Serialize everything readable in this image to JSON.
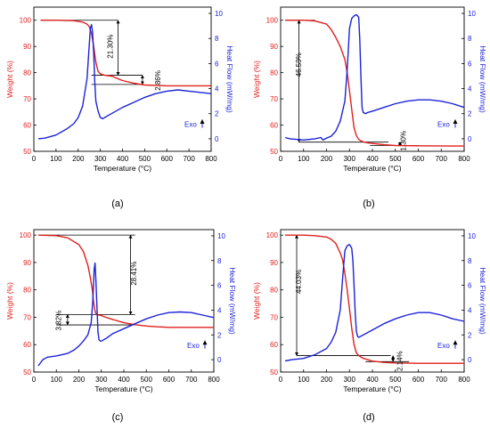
{
  "chart_data": [
    {
      "panel_label": "(a)",
      "type": "line",
      "xlabel": "Temperature (°C)",
      "ylabel_left": "Weight (%)",
      "ylabel_right": "Heat Flow (mW/mg)",
      "xlim": [
        0,
        800
      ],
      "ylim_left": [
        50,
        105
      ],
      "ylim_right": [
        -1,
        10.5
      ],
      "xticks": [
        "0",
        "100",
        "200",
        "300",
        "400",
        "500",
        "600",
        "700",
        "800"
      ],
      "yticks_left": [
        "50",
        "60",
        "70",
        "80",
        "90",
        "100"
      ],
      "yticks_right": [
        "0",
        "2",
        "4",
        "6",
        "8",
        "10"
      ],
      "exo_label": "Exo",
      "series": [
        {
          "axis": "left",
          "color": "#e0201c",
          "x": [
            30,
            100,
            180,
            220,
            240,
            250,
            260,
            270,
            280,
            290,
            300,
            320,
            350,
            400,
            450,
            500,
            600,
            700,
            800
          ],
          "y": [
            100,
            100,
            99.8,
            99.3,
            98.5,
            97.5,
            95,
            90,
            84,
            80.5,
            79.5,
            79,
            78.7,
            77,
            76,
            75.3,
            75,
            75,
            75
          ]
        },
        {
          "axis": "right",
          "color": "#1c22d9",
          "x": [
            20,
            50,
            100,
            150,
            180,
            200,
            220,
            240,
            250,
            255,
            260,
            265,
            270,
            275,
            280,
            290,
            300,
            310,
            320,
            350,
            400,
            450,
            500,
            550,
            600,
            650,
            700,
            750,
            800
          ],
          "y": [
            0,
            0.05,
            0.3,
            0.8,
            1.2,
            1.7,
            2.6,
            4.8,
            7.5,
            8.8,
            9.1,
            8.5,
            6.8,
            4.5,
            3,
            2.2,
            1.7,
            1.6,
            1.7,
            2,
            2.5,
            2.9,
            3.3,
            3.6,
            3.8,
            3.9,
            3.8,
            3.7,
            3.6
          ]
        }
      ],
      "annotations": [
        {
          "text": "21.30%",
          "x": 355,
          "y": 90,
          "rotate": -90
        },
        {
          "text": "2.86%",
          "x": 570,
          "y": 77,
          "rotate": -90
        }
      ],
      "guide_lines": [
        {
          "x1": 30,
          "y1": 100,
          "x2": 380,
          "y2": 100
        },
        {
          "x1": 260,
          "y1": 79,
          "x2": 490,
          "y2": 79
        },
        {
          "x1": 260,
          "y1": 75.5,
          "x2": 490,
          "y2": 75.5
        },
        {
          "x1": 380,
          "y1": 100,
          "x2": 380,
          "y2": 79,
          "arrows": "both"
        },
        {
          "x1": 490,
          "y1": 79,
          "x2": 490,
          "y2": 75.5,
          "arrows": "both"
        }
      ]
    },
    {
      "panel_label": "(b)",
      "type": "line",
      "xlabel": "Temperature (°C)",
      "ylabel_left": "Weight (%)",
      "ylabel_right": "Heat Flow (mW/mg)",
      "xlim": [
        0,
        800
      ],
      "ylim_left": [
        50,
        105
      ],
      "ylim_right": [
        -1,
        10.5
      ],
      "xticks": [
        "0",
        "100",
        "200",
        "300",
        "400",
        "500",
        "600",
        "700",
        "800"
      ],
      "yticks_left": [
        "50",
        "60",
        "70",
        "80",
        "90",
        "100"
      ],
      "yticks_right": [
        "0",
        "2",
        "4",
        "6",
        "8",
        "10"
      ],
      "exo_label": "Exo",
      "series": [
        {
          "axis": "left",
          "color": "#e0201c",
          "x": [
            20,
            100,
            150,
            200,
            220,
            240,
            260,
            280,
            290,
            300,
            310,
            320,
            330,
            340,
            350,
            360,
            380,
            400,
            450,
            500,
            600,
            800
          ],
          "y": [
            100,
            100,
            99.7,
            98.5,
            96.5,
            93.5,
            90,
            85,
            80,
            73,
            66,
            59,
            56,
            54.5,
            54,
            53.6,
            53.2,
            53,
            52.5,
            52.2,
            52.1,
            52
          ]
        },
        {
          "axis": "right",
          "color": "#1c22d9",
          "x": [
            20,
            40,
            100,
            150,
            175,
            185,
            200,
            220,
            240,
            260,
            280,
            290,
            300,
            310,
            320,
            330,
            340,
            345,
            350,
            355,
            360,
            370,
            380,
            400,
            450,
            500,
            550,
            600,
            650,
            700,
            750,
            800
          ],
          "y": [
            0.1,
            0,
            -0.1,
            0,
            0.1,
            -0.1,
            0.05,
            0.2,
            0.6,
            1.4,
            3,
            5.5,
            8.8,
            9.6,
            9.8,
            9.9,
            9.7,
            8,
            5,
            2.5,
            2.1,
            2,
            2.1,
            2.2,
            2.5,
            2.8,
            3,
            3.1,
            3.1,
            3,
            2.8,
            2.5
          ]
        }
      ],
      "annotations": [
        {
          "text": "46.59%",
          "x": 90,
          "y": 83,
          "rotate": -90
        },
        {
          "text": "1.30%",
          "x": 545,
          "y": 54,
          "rotate": -90
        }
      ],
      "guide_lines": [
        {
          "x1": 20,
          "y1": 100,
          "x2": 150,
          "y2": 100
        },
        {
          "x1": 80,
          "y1": 100,
          "x2": 80,
          "y2": 53.5,
          "arrows": "both"
        },
        {
          "x1": 80,
          "y1": 53.5,
          "x2": 470,
          "y2": 53.5
        },
        {
          "x1": 390,
          "y1": 52.2,
          "x2": 600,
          "y2": 52.2
        },
        {
          "x1": 520,
          "y1": 53.5,
          "x2": 520,
          "y2": 52.2,
          "arrows": "both"
        }
      ]
    },
    {
      "panel_label": "(c)",
      "type": "line",
      "xlabel": "Temperature (°C)",
      "ylabel_left": "Weight (%)",
      "ylabel_right": "Heat Flow (mW/mg)",
      "xlim": [
        0,
        800
      ],
      "ylim_left": [
        50,
        102
      ],
      "ylim_right": [
        -1,
        10.5
      ],
      "xticks": [
        "0",
        "100",
        "200",
        "300",
        "400",
        "500",
        "600",
        "700",
        "800"
      ],
      "yticks_left": [
        "50",
        "60",
        "70",
        "80",
        "90",
        "100"
      ],
      "yticks_right": [
        "0",
        "2",
        "4",
        "6",
        "8",
        "10"
      ],
      "exo_label": "Exo",
      "series": [
        {
          "axis": "left",
          "color": "#e0201c",
          "x": [
            20,
            100,
            150,
            200,
            220,
            240,
            250,
            260,
            265,
            270,
            275,
            280,
            290,
            300,
            320,
            350,
            400,
            450,
            500,
            550,
            600,
            700,
            800
          ],
          "y": [
            100,
            99.8,
            99,
            96.5,
            94,
            89,
            85,
            80,
            76,
            73,
            71.5,
            71,
            70.8,
            70.6,
            70,
            69.2,
            68,
            67.3,
            66.8,
            66.5,
            66.3,
            66.3,
            66.3
          ]
        },
        {
          "axis": "right",
          "color": "#1c22d9",
          "x": [
            20,
            40,
            60,
            100,
            150,
            180,
            200,
            220,
            240,
            255,
            262,
            268,
            272,
            276,
            280,
            285,
            290,
            295,
            300,
            320,
            350,
            400,
            450,
            500,
            550,
            600,
            650,
            700,
            750,
            800
          ],
          "y": [
            -0.5,
            0,
            0.2,
            0.3,
            0.5,
            0.8,
            1.1,
            1.5,
            2,
            3,
            4.8,
            7.3,
            7.8,
            6.3,
            4.5,
            2.2,
            1.6,
            1.5,
            1.5,
            1.7,
            2.1,
            2.5,
            2.9,
            3.3,
            3.6,
            3.8,
            3.85,
            3.8,
            3.6,
            3.4
          ]
        }
      ],
      "annotations": [
        {
          "text": "28.41%",
          "x": 455,
          "y": 86,
          "rotate": -90
        },
        {
          "text": "3.82%",
          "x": 120,
          "y": 68.8,
          "rotate": -90
        }
      ],
      "guide_lines": [
        {
          "x1": 20,
          "y1": 100,
          "x2": 450,
          "y2": 100
        },
        {
          "x1": 430,
          "y1": 100,
          "x2": 430,
          "y2": 71,
          "arrows": "both"
        },
        {
          "x1": 100,
          "y1": 71,
          "x2": 450,
          "y2": 71
        },
        {
          "x1": 100,
          "y1": 67.2,
          "x2": 450,
          "y2": 67.2
        },
        {
          "x1": 150,
          "y1": 71,
          "x2": 150,
          "y2": 67.2,
          "arrows": "both"
        }
      ]
    },
    {
      "panel_label": "(d)",
      "type": "line",
      "xlabel": "Temperature (°C)",
      "ylabel_left": "Weight (%)",
      "ylabel_right": "Heat Flow (mW/mg)",
      "xlim": [
        0,
        800
      ],
      "ylim_left": [
        50,
        102
      ],
      "ylim_right": [
        -1,
        10.5
      ],
      "xticks": [
        "0",
        "100",
        "200",
        "300",
        "400",
        "500",
        "600",
        "700",
        "800"
      ],
      "yticks_left": [
        "50",
        "60",
        "70",
        "80",
        "90",
        "100"
      ],
      "yticks_right": [
        "0",
        "2",
        "4",
        "6",
        "8",
        "10"
      ],
      "exo_label": "Exo",
      "series": [
        {
          "axis": "left",
          "color": "#e0201c",
          "x": [
            20,
            100,
            150,
            200,
            220,
            240,
            260,
            270,
            280,
            290,
            300,
            310,
            320,
            330,
            340,
            350,
            360,
            400,
            450,
            500,
            600,
            800
          ],
          "y": [
            100,
            100,
            99.8,
            99.3,
            98.5,
            97,
            93.5,
            91,
            86,
            80,
            73,
            66,
            60,
            57,
            56,
            55.5,
            55,
            54,
            53.5,
            53.3,
            53.2,
            53.2
          ]
        },
        {
          "axis": "right",
          "color": "#1c22d9",
          "x": [
            20,
            50,
            100,
            150,
            200,
            220,
            240,
            260,
            270,
            280,
            290,
            300,
            310,
            315,
            320,
            325,
            330,
            335,
            340,
            350,
            400,
            450,
            500,
            550,
            600,
            650,
            700,
            750,
            800
          ],
          "y": [
            -0.1,
            0,
            0.1,
            0.4,
            0.9,
            1.4,
            2.2,
            4,
            6.5,
            8.8,
            9.2,
            9.3,
            9,
            8,
            6,
            3.8,
            2.3,
            1.9,
            1.8,
            1.9,
            2.4,
            2.9,
            3.3,
            3.6,
            3.8,
            3.8,
            3.6,
            3.3,
            3.1
          ]
        }
      ],
      "annotations": [
        {
          "text": "44.03%",
          "x": 90,
          "y": 83,
          "rotate": -90
        },
        {
          "text": "2.14%",
          "x": 530,
          "y": 54,
          "rotate": -90
        }
      ],
      "guide_lines": [
        {
          "x1": 20,
          "y1": 100,
          "x2": 110,
          "y2": 100
        },
        {
          "x1": 70,
          "y1": 100,
          "x2": 70,
          "y2": 56,
          "arrows": "both"
        },
        {
          "x1": 70,
          "y1": 56,
          "x2": 480,
          "y2": 56
        },
        {
          "x1": 370,
          "y1": 53.8,
          "x2": 560,
          "y2": 53.8
        },
        {
          "x1": 490,
          "y1": 56,
          "x2": 490,
          "y2": 53.8,
          "arrows": "both"
        }
      ]
    }
  ]
}
